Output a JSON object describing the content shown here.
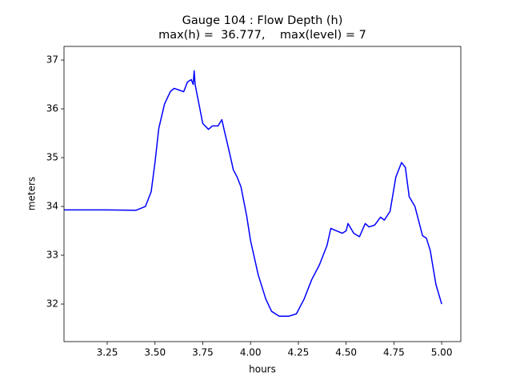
{
  "chart_data": {
    "type": "line",
    "title": [
      "Gauge 104 : Flow Depth (h)",
      "max(h) =  36.777,    max(level) = 7"
    ],
    "x_label": "hours",
    "y_label": "meters",
    "x": [
      3.024,
      3.25,
      3.4,
      3.45,
      3.48,
      3.5,
      3.52,
      3.55,
      3.58,
      3.6,
      3.63,
      3.65,
      3.67,
      3.69,
      3.7,
      3.705,
      3.71,
      3.73,
      3.75,
      3.78,
      3.8,
      3.83,
      3.85,
      3.86,
      3.89,
      3.91,
      3.93,
      3.95,
      3.98,
      4.0,
      4.04,
      4.08,
      4.11,
      4.15,
      4.17,
      4.2,
      4.24,
      4.28,
      4.32,
      4.36,
      4.4,
      4.42,
      4.45,
      4.48,
      4.5,
      4.51,
      4.54,
      4.57,
      4.6,
      4.62,
      4.65,
      4.68,
      4.7,
      4.73,
      4.76,
      4.79,
      4.81,
      4.83,
      4.86,
      4.9,
      4.92,
      4.94,
      4.97,
      5.0
    ],
    "series": [
      {
        "name": "h",
        "color": "#0000ff",
        "values": [
          33.93,
          33.93,
          33.92,
          34.0,
          34.3,
          34.9,
          35.6,
          36.1,
          36.35,
          36.42,
          36.38,
          36.35,
          36.55,
          36.6,
          36.5,
          36.78,
          36.5,
          36.1,
          35.7,
          35.58,
          35.65,
          35.65,
          35.78,
          35.6,
          35.1,
          34.75,
          34.6,
          34.4,
          33.8,
          33.3,
          32.6,
          32.1,
          31.85,
          31.75,
          31.75,
          31.75,
          31.8,
          32.1,
          32.5,
          32.8,
          33.2,
          33.55,
          33.5,
          33.45,
          33.5,
          33.65,
          33.45,
          33.38,
          33.65,
          33.58,
          33.62,
          33.78,
          33.72,
          33.9,
          34.6,
          34.9,
          34.8,
          34.2,
          34.0,
          33.4,
          33.35,
          33.1,
          32.4,
          32.0
        ]
      }
    ],
    "xlim": [
      3.024,
      5.1
    ],
    "ylim": [
      31.23,
      37.28
    ],
    "xticks": [
      3.25,
      {
        "value": 3.5,
        "label": "3.50"
      },
      3.75,
      {
        "value": 4.0,
        "label": "4.00"
      },
      4.25,
      {
        "value": 4.5,
        "label": "4.50"
      },
      4.75,
      {
        "value": 5.0,
        "label": "5.00"
      }
    ],
    "yticks": [
      32,
      33,
      34,
      35,
      36,
      37
    ],
    "grid": false
  }
}
